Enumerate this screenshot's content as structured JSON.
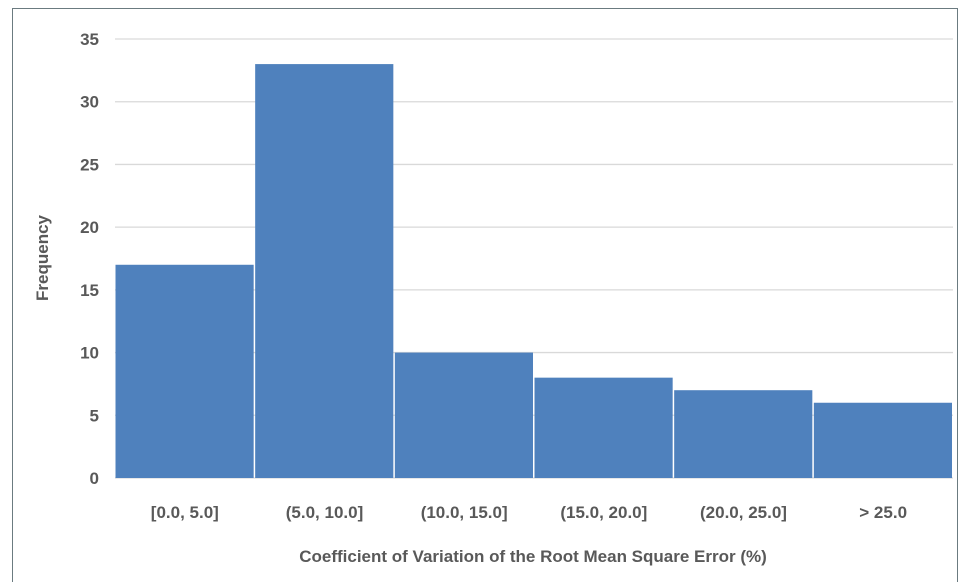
{
  "chart_data": {
    "type": "bar",
    "categories": [
      "[0.0, 5.0]",
      "(5.0, 10.0]",
      "(10.0, 15.0]",
      "(15.0, 20.0]",
      "(20.0, 25.0]",
      "> 25.0"
    ],
    "values": [
      17,
      33,
      10,
      8,
      7,
      6
    ],
    "xlabel": "Coefficient of Variation of the Root Mean Square Error (%)",
    "ylabel": "Frequency",
    "ylim": [
      0,
      35
    ],
    "yticks": [
      0,
      5,
      10,
      15,
      20,
      25,
      30,
      35
    ],
    "grid": true,
    "legend": "none",
    "colors": {
      "bar": "#4f81bd",
      "grid": "#d9d9d9",
      "frame": "#6b7b80",
      "text": "#595959"
    }
  }
}
